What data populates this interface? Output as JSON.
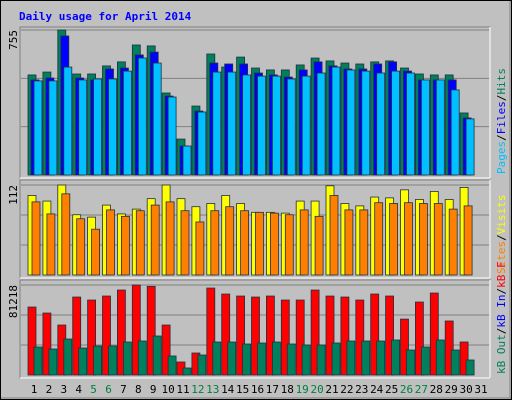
{
  "title": "Daily usage for April 2014",
  "legend_separator": "/",
  "x_axis": {
    "categories": [
      "1",
      "2",
      "3",
      "4",
      "5",
      "6",
      "7",
      "8",
      "9",
      "10",
      "11",
      "12",
      "13",
      "14",
      "15",
      "16",
      "17",
      "18",
      "19",
      "20",
      "21",
      "22",
      "23",
      "24",
      "25",
      "26",
      "27",
      "28",
      "29",
      "30",
      "31"
    ],
    "highlight_categories": [
      "5",
      "6",
      "12",
      "13",
      "19",
      "20",
      "26",
      "27"
    ],
    "color": "#000000",
    "highlight_color": "#008040"
  },
  "chart_data": [
    {
      "type": "bar",
      "ylim": [
        0,
        755
      ],
      "yticks": [
        755
      ],
      "series": [
        {
          "name": "Hits",
          "color": "#00805c",
          "values": [
            521,
            536,
            755,
            526,
            526,
            568,
            589,
            677,
            672,
            427,
            187,
            359,
            630,
            562,
            614,
            557,
            547,
            547,
            573,
            609,
            594,
            583,
            578,
            589,
            594,
            557,
            526,
            521,
            521,
            323,
            null
          ]
        },
        {
          "name": "Files",
          "color": "#0000ff",
          "values": [
            495,
            505,
            724,
            505,
            495,
            552,
            557,
            625,
            640,
            411,
            151,
            333,
            583,
            578,
            578,
            531,
            521,
            510,
            547,
            589,
            568,
            552,
            552,
            578,
            589,
            541,
            495,
            495,
            495,
            297,
            null
          ]
        },
        {
          "name": "Pages",
          "color": "#00c0ff",
          "values": [
            490,
            490,
            562,
            495,
            500,
            500,
            541,
            609,
            583,
            406,
            151,
            328,
            536,
            536,
            521,
            515,
            515,
            500,
            515,
            531,
            562,
            547,
            541,
            531,
            541,
            531,
            495,
            495,
            443,
            292,
            null
          ]
        }
      ]
    },
    {
      "type": "bar",
      "ylim": [
        0,
        112
      ],
      "yticks": [
        112
      ],
      "series": [
        {
          "name": "Visits",
          "color": "#ffff00",
          "values": [
            99,
            92,
            112,
            75,
            72,
            87,
            76,
            82,
            95,
            112,
            95,
            85,
            89,
            99,
            89,
            78,
            78,
            77,
            92,
            92,
            111,
            89,
            86,
            97,
            96,
            106,
            94,
            104,
            94,
            109,
            null
          ]
        },
        {
          "name": "Sites",
          "color": "#ff8000",
          "values": [
            91,
            76,
            101,
            70,
            57,
            81,
            73,
            80,
            87,
            91,
            80,
            66,
            80,
            85,
            80,
            78,
            77,
            75,
            81,
            73,
            99,
            81,
            81,
            90,
            89,
            90,
            89,
            89,
            82,
            86,
            null
          ]
        }
      ]
    },
    {
      "type": "bar",
      "ylim": [
        0,
        81218
      ],
      "yticks": [
        81218
      ],
      "series": [
        {
          "name": "kB F",
          "color": "#ff0000",
          "values": [
            61334,
            55921,
            45096,
            70354,
            67648,
            71256,
            76670,
            81218,
            80000,
            45096,
            11727,
            19847,
            78474,
            73060,
            71256,
            70354,
            71256,
            67648,
            67648,
            76670,
            71256,
            70354,
            67648,
            73060,
            71256,
            50433,
            65843,
            73963,
            48729,
            29782,
            null
          ]
        },
        {
          "name": "kB In",
          "color": "#0000ff",
          "values": [
            null,
            null,
            null,
            null,
            null,
            null,
            null,
            null,
            null,
            null,
            null,
            null,
            null,
            null,
            null,
            null,
            null,
            null,
            null,
            null,
            null,
            null,
            null,
            null,
            null,
            null,
            null,
            null,
            null,
            null,
            null
          ]
        },
        {
          "name": "kB Out",
          "color": "#00805c",
          "values": [
            25262,
            23457,
            32479,
            24360,
            26164,
            26164,
            29773,
            30675,
            35187,
            17144,
            6317,
            18046,
            29773,
            29773,
            27968,
            28871,
            29773,
            27968,
            27066,
            27066,
            28871,
            30675,
            30675,
            30675,
            31577,
            22555,
            25262,
            31577,
            22555,
            13533,
            null
          ]
        }
      ]
    }
  ]
}
